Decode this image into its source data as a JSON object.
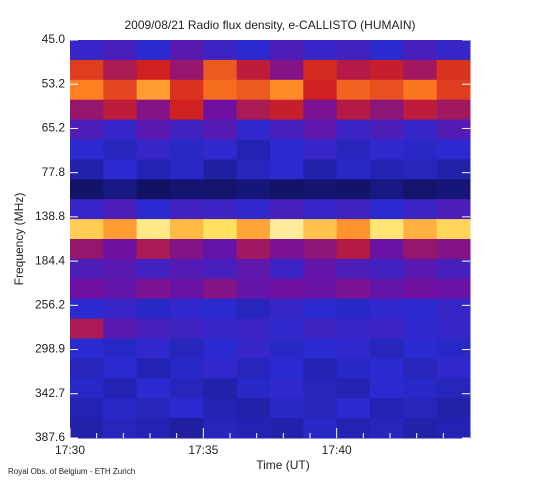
{
  "chart_data": {
    "type": "spectrogram",
    "title": "2009/08/21  Radio flux density, e-CALLISTO (HUMAIN)",
    "x_label": "Time (UT)",
    "y_label": "Frequency (MHz)",
    "footer": "Royal Obs. of Belgium - ETH Zurich",
    "x_labels": [
      "17:30",
      "17:35",
      "17:40"
    ],
    "y_labels": [
      "45.0",
      "53.2",
      "65.2",
      "77.8",
      "138.8",
      "184.4",
      "256.2",
      "298.9",
      "342.7",
      "387.6"
    ],
    "z": [
      [
        52,
        55,
        50,
        58,
        53,
        50,
        56,
        52,
        54,
        50,
        55,
        52
      ],
      [
        75,
        68,
        72,
        66,
        78,
        70,
        64,
        73,
        69,
        71,
        67,
        74
      ],
      [
        82,
        76,
        85,
        74,
        80,
        78,
        83,
        72,
        79,
        77,
        81,
        75
      ],
      [
        66,
        70,
        64,
        72,
        62,
        68,
        71,
        63,
        69,
        65,
        70,
        67
      ],
      [
        56,
        52,
        58,
        54,
        57,
        51,
        55,
        59,
        53,
        56,
        52,
        57
      ],
      [
        50,
        48,
        52,
        49,
        51,
        47,
        50,
        52,
        48,
        51,
        49,
        50
      ],
      [
        46,
        50,
        47,
        49,
        45,
        48,
        50,
        46,
        49,
        47,
        48,
        46
      ],
      [
        38,
        42,
        36,
        40,
        39,
        41,
        37,
        40,
        38,
        42,
        39,
        41
      ],
      [
        52,
        56,
        50,
        54,
        53,
        51,
        55,
        52,
        54,
        50,
        53,
        56
      ],
      [
        90,
        85,
        94,
        88,
        92,
        86,
        95,
        89,
        84,
        93,
        87,
        91
      ],
      [
        66,
        62,
        68,
        64,
        60,
        67,
        63,
        65,
        69,
        61,
        66,
        64
      ],
      [
        56,
        58,
        54,
        57,
        55,
        59,
        53,
        60,
        56,
        54,
        58,
        55
      ],
      [
        62,
        60,
        63,
        61,
        64,
        60,
        62,
        61,
        63,
        60,
        62,
        61
      ],
      [
        50,
        52,
        49,
        51,
        50,
        48,
        52,
        50,
        49,
        51,
        50,
        52
      ],
      [
        68,
        58,
        55,
        54,
        52,
        53,
        51,
        54,
        52,
        53,
        51,
        52
      ],
      [
        50,
        49,
        51,
        48,
        50,
        52,
        49,
        50,
        51,
        48,
        50,
        49
      ],
      [
        48,
        50,
        47,
        49,
        51,
        48,
        50,
        47,
        49,
        50,
        48,
        51
      ],
      [
        49,
        47,
        50,
        48,
        46,
        49,
        51,
        48,
        47,
        50,
        49,
        48
      ],
      [
        47,
        49,
        48,
        50,
        47,
        46,
        49,
        48,
        50,
        47,
        48,
        46
      ],
      [
        46,
        48,
        47,
        45,
        48,
        47,
        46,
        49,
        47,
        48,
        46,
        47
      ]
    ]
  }
}
